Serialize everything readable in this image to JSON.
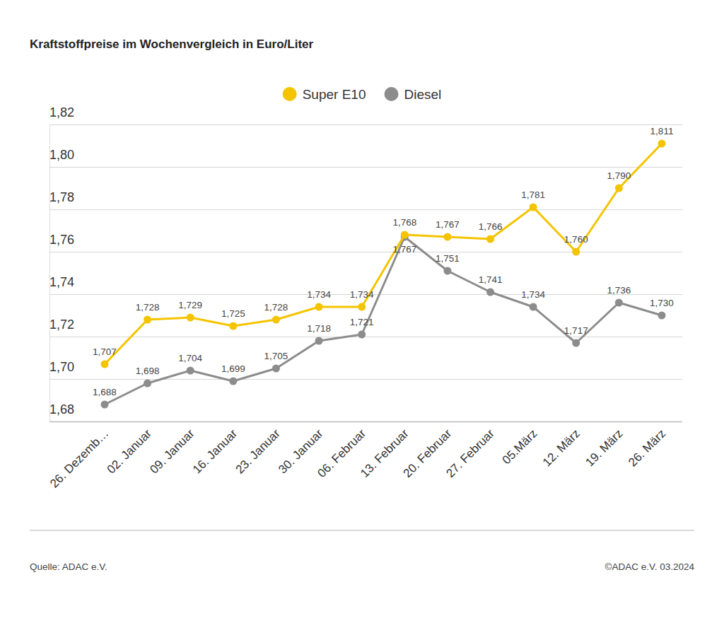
{
  "chart_data": {
    "type": "line",
    "title": "Kraftstoffpreise im Wochenvergleich in Euro/Liter",
    "source": "Quelle: ADAC e.V.",
    "copyright": "©ADAC e.V. 03.2024",
    "categories": [
      "26. Dezemb…",
      "02. Januar",
      "09. Januar",
      "16. Januar",
      "23. Januar",
      "30. Januar",
      "06. Februar",
      "13. Februar",
      "20. Februar",
      "27. Februar",
      "05.März",
      "12. März",
      "19. März",
      "26. März"
    ],
    "series": [
      {
        "name": "Super E10",
        "color": "#f5c400",
        "marker": "circle",
        "line_style": "solid",
        "values": [
          1.707,
          1.728,
          1.729,
          1.725,
          1.728,
          1.734,
          1.734,
          1.768,
          1.767,
          1.766,
          1.781,
          1.76,
          1.79,
          1.811
        ],
        "value_labels": [
          "1,707",
          "1,728",
          "1,729",
          "1,725",
          "1,728",
          "1,734",
          "1,734",
          "1,768",
          "1,767",
          "1,766",
          "1,781",
          "1,760",
          "1,790",
          "1,811"
        ]
      },
      {
        "name": "Diesel",
        "color": "#8c8c8c",
        "marker": "circle",
        "line_style": "solid",
        "values": [
          1.688,
          1.698,
          1.704,
          1.699,
          1.705,
          1.718,
          1.721,
          1.767,
          1.751,
          1.741,
          1.734,
          1.717,
          1.736,
          1.73
        ],
        "value_labels": [
          "1,688",
          "1,698",
          "1,704",
          "1,699",
          "1,705",
          "1,718",
          "1,721",
          "1,767",
          "1,751",
          "1,741",
          "1,734",
          "1,717",
          "1,736",
          "1,730"
        ]
      }
    ],
    "ylim": [
      1.68,
      1.82
    ],
    "yticks": [
      {
        "value": 1.68,
        "label": "1,68"
      },
      {
        "value": 1.7,
        "label": "1,70"
      },
      {
        "value": 1.72,
        "label": "1,72"
      },
      {
        "value": 1.74,
        "label": "1,74"
      },
      {
        "value": 1.76,
        "label": "1,76"
      },
      {
        "value": 1.78,
        "label": "1,78"
      },
      {
        "value": 1.8,
        "label": "1,80"
      },
      {
        "value": 1.82,
        "label": "1,82"
      }
    ],
    "grid": true,
    "legend": "top",
    "data_labels": true
  }
}
